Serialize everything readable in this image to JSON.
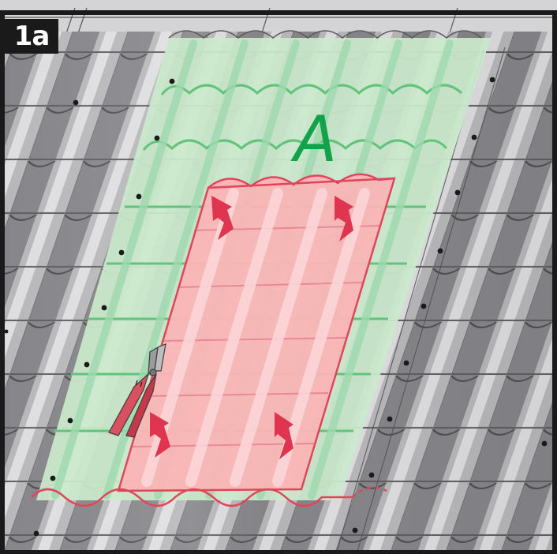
{
  "figure": {
    "step_label": "1a",
    "zone_label": "A"
  },
  "colors": {
    "frame": "#1a1a1a",
    "tile_base": "#9a9a9c",
    "tile_dark": "#6d6d70",
    "tile_light": "#e4e4e6",
    "flashing_green_fill": "#cbeacd",
    "flashing_green_line": "#62c47a",
    "red_sheet_fill": "#f9b5b5",
    "red_sheet_line": "#e0455a",
    "arrow_red": "#e03550",
    "label_green": "#11a24a"
  },
  "arrows": [
    {
      "id": "top-left",
      "direction": "up"
    },
    {
      "id": "top-right",
      "direction": "up"
    },
    {
      "id": "bottom-left",
      "direction": "up"
    },
    {
      "id": "bottom-right",
      "direction": "up"
    }
  ],
  "icons": [
    "tin-snips-icon",
    "direction-arrow-icon"
  ]
}
